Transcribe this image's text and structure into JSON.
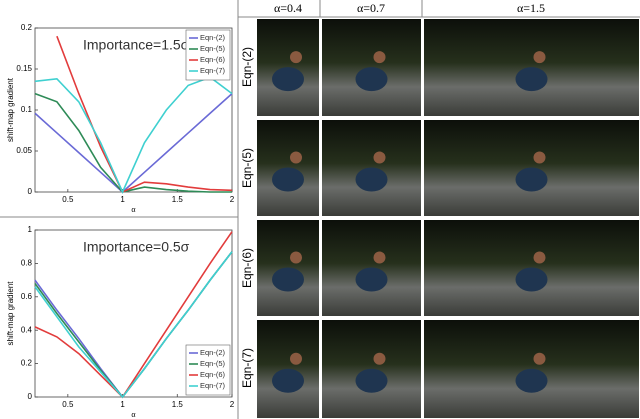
{
  "chart_data": [
    {
      "type": "line",
      "annotation": "Importance=1.5σ",
      "x_label": "α",
      "y_label": "shift-map gradient",
      "x": [
        0.2,
        0.4,
        0.6,
        0.8,
        1.0,
        1.2,
        1.4,
        1.6,
        1.8,
        2.0
      ],
      "series": [
        {
          "name": "Eqn-(2)",
          "color": "#6a6ad6",
          "values": [
            0.096,
            0.072,
            0.048,
            0.024,
            0,
            0.024,
            0.048,
            0.072,
            0.096,
            0.12
          ]
        },
        {
          "name": "Eqn-(5)",
          "color": "#2e8b57",
          "values": [
            0.12,
            0.11,
            0.075,
            0.03,
            0,
            0.006,
            0.003,
            0.001,
            0,
            0
          ]
        },
        {
          "name": "Eqn-(6)",
          "color": "#e23c3c",
          "values": [
            null,
            0.19,
            0.12,
            0.055,
            0,
            0.012,
            0.01,
            0.006,
            0.003,
            0.002
          ]
        },
        {
          "name": "Eqn-(7)",
          "color": "#3fd0d0",
          "values": [
            0.135,
            0.138,
            0.11,
            0.06,
            0,
            0.06,
            0.1,
            0.13,
            0.14,
            0.12
          ]
        }
      ],
      "xlim": [
        0.2,
        2
      ],
      "xticks": [
        0.5,
        1,
        1.5,
        2
      ],
      "ylim": [
        0,
        0.2
      ],
      "yticks": [
        0,
        0.05,
        0.1,
        0.15,
        0.2
      ],
      "grid": false,
      "legend": "upper right"
    },
    {
      "type": "line",
      "annotation": "Importance=0.5σ",
      "x_label": "α",
      "y_label": "shift-map gradient",
      "x": [
        0.2,
        0.4,
        0.6,
        0.8,
        1.0,
        1.2,
        1.4,
        1.6,
        1.8,
        2.0
      ],
      "series": [
        {
          "name": "Eqn-(2)",
          "color": "#6a6ad6",
          "values": [
            0.7,
            0.52,
            0.35,
            0.17,
            0,
            0.17,
            0.35,
            0.52,
            0.7,
            0.87
          ]
        },
        {
          "name": "Eqn-(5)",
          "color": "#2e8b57",
          "values": [
            0.68,
            0.5,
            0.33,
            0.16,
            0,
            0.17,
            0.35,
            0.52,
            0.7,
            0.87
          ]
        },
        {
          "name": "Eqn-(6)",
          "color": "#e23c3c",
          "values": [
            0.42,
            0.36,
            0.26,
            0.13,
            0,
            0.2,
            0.4,
            0.6,
            0.8,
            0.99
          ]
        },
        {
          "name": "Eqn-(7)",
          "color": "#3fd0d0",
          "values": [
            0.66,
            0.48,
            0.3,
            0.15,
            0,
            0.17,
            0.35,
            0.52,
            0.7,
            0.87
          ]
        }
      ],
      "xlim": [
        0.2,
        2
      ],
      "xticks": [
        0.5,
        1,
        1.5,
        2
      ],
      "ylim": [
        0,
        1
      ],
      "yticks": [
        0,
        0.2,
        0.4,
        0.6,
        0.8,
        1
      ],
      "grid": false,
      "legend": "lower right"
    }
  ],
  "image_grid": {
    "columns": [
      "α=0.4",
      "α=0.7",
      "α=1.5"
    ],
    "rows": [
      "Eqn-(2)",
      "Eqn-(5)",
      "Eqn-(6)",
      "Eqn-(7)"
    ]
  }
}
